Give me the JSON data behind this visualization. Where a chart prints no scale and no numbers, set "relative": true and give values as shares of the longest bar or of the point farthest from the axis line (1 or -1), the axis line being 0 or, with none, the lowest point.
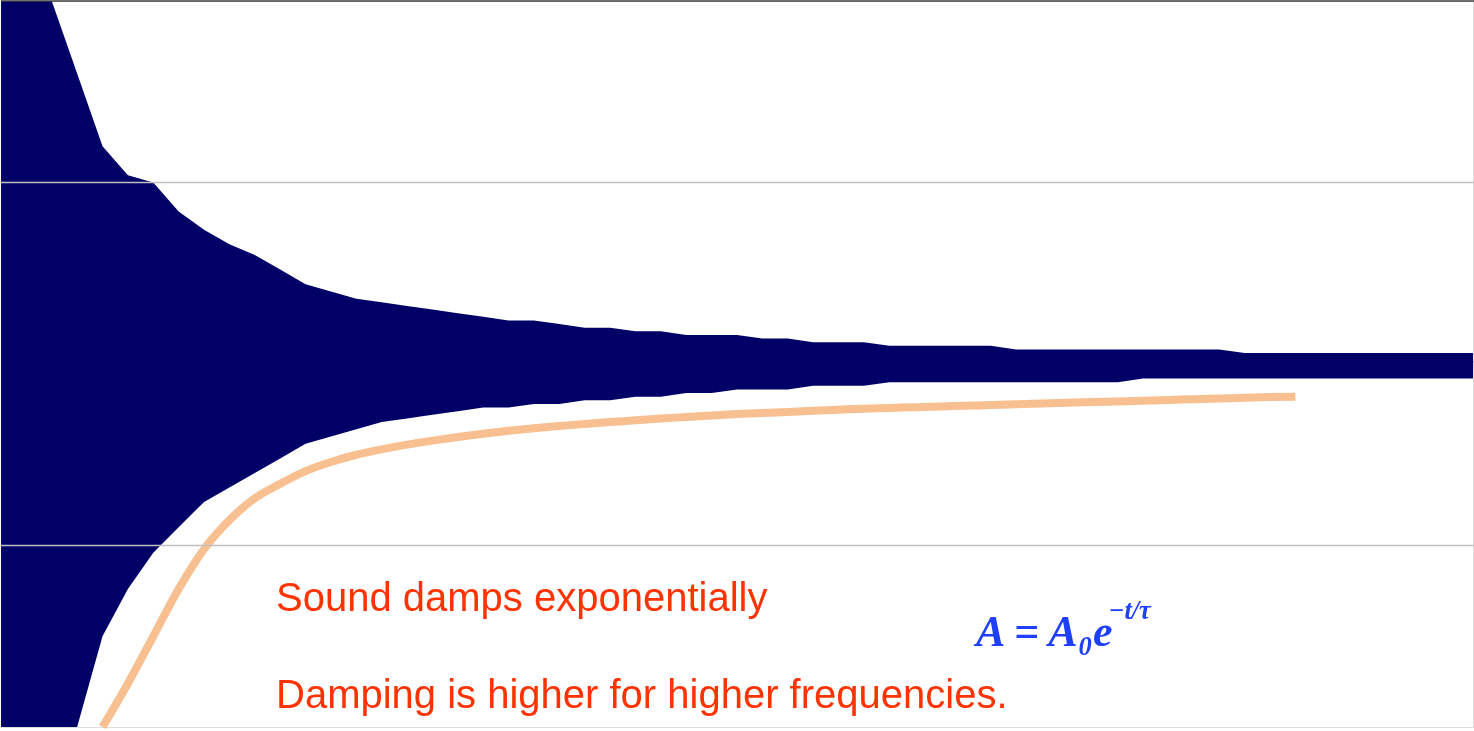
{
  "chart_data": {
    "type": "area",
    "relative": true,
    "categories": [
      null,
      null,
      null,
      null,
      null,
      null,
      null,
      null,
      null,
      null,
      null,
      null,
      null,
      null,
      null,
      null,
      null,
      null,
      null,
      null,
      null,
      null,
      null,
      null,
      null,
      null,
      null,
      null,
      null,
      null,
      null,
      null,
      null,
      null,
      null,
      null,
      null,
      null,
      null,
      null,
      null,
      null,
      null,
      null,
      null,
      null,
      null,
      null,
      null,
      null,
      null,
      null,
      null,
      null,
      null,
      null,
      null,
      null,
      null
    ],
    "series": [
      {
        "color": "#000066",
        "values": [
          1.0,
          1.0,
          1.0,
          0.8,
          0.6,
          0.52,
          0.5,
          0.42,
          0.37,
          0.33,
          0.3,
          0.26,
          0.22,
          0.2,
          0.18,
          0.17,
          0.16,
          0.15,
          0.14,
          0.13,
          0.12,
          0.12,
          0.11,
          0.1,
          0.1,
          0.09,
          0.09,
          0.08,
          0.08,
          0.08,
          0.07,
          0.07,
          0.06,
          0.06,
          0.06,
          0.05,
          0.05,
          0.05,
          0.05,
          0.05,
          0.04,
          0.04,
          0.04,
          0.04,
          0.04,
          0.04,
          0.04,
          0.04,
          0.04,
          0.03,
          0.03,
          0.03,
          0.03,
          0.03,
          0.03,
          0.03,
          0.03,
          0.03,
          0.03
        ]
      },
      {
        "color": "#000066",
        "values": [
          -1.0,
          -1.0,
          -1.0,
          -1.0,
          -0.75,
          -0.62,
          -0.52,
          -0.45,
          -0.38,
          -0.34,
          -0.3,
          -0.26,
          -0.22,
          -0.2,
          -0.18,
          -0.16,
          -0.15,
          -0.14,
          -0.13,
          -0.12,
          -0.12,
          -0.11,
          -0.11,
          -0.1,
          -0.1,
          -0.09,
          -0.09,
          -0.08,
          -0.08,
          -0.07,
          -0.07,
          -0.07,
          -0.06,
          -0.06,
          -0.06,
          -0.05,
          -0.05,
          -0.05,
          -0.05,
          -0.05,
          -0.05,
          -0.05,
          -0.05,
          -0.05,
          -0.05,
          -0.04,
          -0.04,
          -0.04,
          -0.04,
          -0.04,
          -0.04,
          -0.04,
          -0.04,
          -0.04,
          -0.04,
          -0.04,
          -0.04,
          -0.04,
          -0.04
        ]
      },
      {
        "type": "line",
        "color": "#f8c090",
        "values": [
          null,
          null,
          null,
          null,
          -1.0,
          -0.88,
          -0.75,
          -0.62,
          -0.51,
          -0.43,
          -0.37,
          -0.33,
          -0.295,
          -0.27,
          -0.25,
          -0.235,
          -0.222,
          -0.211,
          -0.201,
          -0.192,
          -0.184,
          -0.177,
          -0.171,
          -0.165,
          -0.16,
          -0.155,
          -0.15,
          -0.146,
          -0.142,
          -0.138,
          -0.135,
          -0.132,
          -0.129,
          -0.126,
          -0.123,
          -0.121,
          -0.119,
          -0.117,
          -0.115,
          -0.113,
          -0.111,
          -0.109,
          -0.107,
          -0.105,
          -0.103,
          -0.101,
          -0.099,
          -0.097,
          -0.095,
          -0.093,
          -0.091,
          -0.09,
          null,
          null,
          null,
          null,
          null,
          null,
          null
        ]
      }
    ],
    "ref_lines": [
      {
        "axis": "y",
        "value": 1.0,
        "color": "#404040"
      },
      {
        "axis": "y",
        "value": 0.5,
        "color": "#c0c0c0"
      },
      {
        "axis": "y",
        "value": -0.5,
        "color": "#c0c0c0"
      }
    ],
    "annotations": [
      "Sound damps exponentially",
      "Damping is higher for higher frequencies.",
      "A = A₀e$^{−t/τ}$"
    ]
  }
}
